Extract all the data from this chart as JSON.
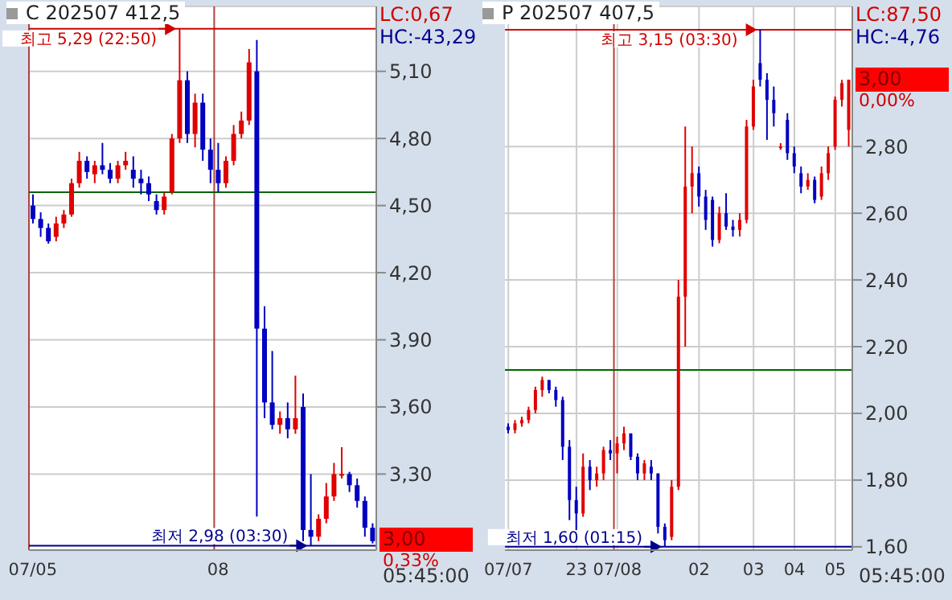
{
  "chart_data": [
    {
      "type": "candlestick",
      "title": "C 202507 412,5",
      "categories": [
        "07/05",
        null,
        null,
        null,
        null,
        null,
        null,
        null,
        null,
        null,
        null,
        null,
        null,
        null,
        null,
        null,
        null,
        null,
        null,
        null,
        null,
        null,
        null,
        null,
        "08",
        null,
        null,
        null,
        null,
        null,
        null,
        null,
        null,
        null,
        null,
        null,
        null,
        null,
        null,
        null,
        null,
        null,
        null,
        null,
        null
      ],
      "ohlc": [
        [
          4.5,
          4.55,
          4.42,
          4.44
        ],
        [
          4.44,
          4.47,
          4.36,
          4.4
        ],
        [
          4.4,
          4.42,
          4.33,
          4.34
        ],
        [
          4.36,
          4.45,
          4.34,
          4.42
        ],
        [
          4.42,
          4.48,
          4.4,
          4.46
        ],
        [
          4.46,
          4.62,
          4.45,
          4.6
        ],
        [
          4.6,
          4.74,
          4.58,
          4.7
        ],
        [
          4.7,
          4.72,
          4.62,
          4.65
        ],
        [
          4.64,
          4.7,
          4.6,
          4.68
        ],
        [
          4.68,
          4.78,
          4.64,
          4.66
        ],
        [
          4.66,
          4.69,
          4.6,
          4.62
        ],
        [
          4.62,
          4.7,
          4.6,
          4.68
        ],
        [
          4.68,
          4.74,
          4.66,
          4.7
        ],
        [
          4.66,
          4.72,
          4.58,
          4.62
        ],
        [
          4.62,
          4.66,
          4.55,
          4.6
        ],
        [
          4.6,
          4.63,
          4.52,
          4.55
        ],
        [
          4.52,
          4.55,
          4.46,
          4.48
        ],
        [
          4.48,
          4.56,
          4.46,
          4.54
        ],
        [
          4.56,
          4.82,
          4.55,
          4.8
        ],
        [
          4.8,
          5.29,
          4.78,
          5.06
        ],
        [
          5.06,
          5.1,
          4.78,
          4.82
        ],
        [
          4.82,
          5.0,
          4.76,
          4.96
        ],
        [
          4.96,
          5.0,
          4.7,
          4.75
        ],
        [
          4.75,
          4.8,
          4.6,
          4.66
        ],
        [
          4.66,
          4.78,
          4.56,
          4.6
        ],
        [
          4.6,
          4.72,
          4.58,
          4.7
        ],
        [
          4.7,
          4.86,
          4.68,
          4.82
        ],
        [
          4.82,
          4.92,
          4.8,
          4.88
        ],
        [
          4.88,
          5.2,
          4.86,
          5.14
        ],
        [
          5.1,
          5.24,
          3.11,
          3.95
        ],
        [
          3.95,
          4.05,
          3.55,
          3.62
        ],
        [
          3.62,
          3.85,
          3.5,
          3.52
        ],
        [
          3.52,
          3.58,
          3.48,
          3.55
        ],
        [
          3.55,
          3.62,
          3.46,
          3.5
        ],
        [
          3.5,
          3.74,
          3.48,
          3.55
        ],
        [
          3.6,
          3.66,
          3.0,
          3.05
        ],
        [
          3.05,
          3.3,
          2.98,
          3.02
        ],
        [
          3.02,
          3.12,
          3.0,
          3.1
        ],
        [
          3.1,
          3.26,
          3.08,
          3.2
        ],
        [
          3.2,
          3.35,
          3.18,
          3.3
        ],
        [
          3.3,
          3.42,
          3.28,
          3.3
        ],
        [
          3.3,
          3.31,
          3.22,
          3.25
        ],
        [
          3.25,
          3.28,
          3.15,
          3.18
        ],
        [
          3.18,
          3.2,
          3.02,
          3.06
        ],
        [
          3.06,
          3.08,
          2.99,
          3.0
        ]
      ],
      "colors": [
        "#0000c0",
        "#0000c0",
        "#0000c0",
        "#e00000",
        "#e00000",
        "#e00000",
        "#e00000",
        "#0000c0",
        "#e00000",
        "#0000c0",
        "#0000c0",
        "#e00000",
        "#e00000",
        "#0000c0",
        "#0000c0",
        "#0000c0",
        "#0000c0",
        "#e00000",
        "#e00000",
        "#e00000",
        "#0000c0",
        "#e00000",
        "#0000c0",
        "#0000c0",
        "#0000c0",
        "#e00000",
        "#e00000",
        "#e00000",
        "#e00000",
        "#0000c0",
        "#0000c0",
        "#0000c0",
        "#e00000",
        "#0000c0",
        "#e00000",
        "#0000c0",
        "#0000c0",
        "#e00000",
        "#e00000",
        "#e00000",
        "#e00000",
        "#0000c0",
        "#0000c0",
        "#0000c0",
        "#0000c0"
      ],
      "ylim": [
        2.96,
        5.39
      ],
      "yticks": [
        {
          "value": 3.3,
          "label": "3,30"
        },
        {
          "value": 3.6,
          "label": "3,60"
        },
        {
          "value": 3.9,
          "label": "3,90"
        },
        {
          "value": 4.2,
          "label": "4,20"
        },
        {
          "value": 4.5,
          "label": "4,50"
        },
        {
          "value": 4.8,
          "label": "4,80"
        },
        {
          "value": 5.1,
          "label": "5,10"
        }
      ],
      "grid": "y",
      "ref_lines": [
        {
          "axis": "y",
          "value": 5.29,
          "label": "최고 5,29 (22:50)",
          "color": "#d00000"
        },
        {
          "axis": "y",
          "value": 2.98,
          "label": "최저 2,98 (03:30)",
          "color": "#000090"
        },
        {
          "axis": "y",
          "value": 4.56,
          "color": "#006400"
        },
        {
          "axis": "x",
          "value": "07/05",
          "color": "#b04040"
        },
        {
          "axis": "x",
          "value": "08",
          "color": "#b04040"
        }
      ],
      "annotations": [
        "LC:0,67",
        "HC:-43,29",
        "3,00",
        "0,33%",
        "05:45:00"
      ]
    },
    {
      "type": "candlestick",
      "title": "P 202507 407,5",
      "categories": [
        "07/07",
        null,
        null,
        null,
        null,
        null,
        null,
        null,
        null,
        null,
        "23",
        null,
        null,
        null,
        null,
        null,
        "07/08",
        null,
        null,
        null,
        null,
        null,
        null,
        null,
        null,
        null,
        null,
        null,
        "02",
        null,
        null,
        null,
        null,
        null,
        null,
        null,
        "03",
        null,
        null,
        null,
        null,
        null,
        "04",
        null,
        null,
        null,
        null,
        null,
        "05",
        null,
        null
      ],
      "ohlc": [
        [
          1.96,
          1.97,
          1.94,
          1.95
        ],
        [
          1.95,
          1.98,
          1.94,
          1.97
        ],
        [
          1.97,
          1.99,
          1.96,
          1.98
        ],
        [
          1.98,
          2.02,
          1.97,
          2.01
        ],
        [
          2.01,
          2.08,
          2.0,
          2.07
        ],
        [
          2.07,
          2.11,
          2.05,
          2.1
        ],
        [
          2.1,
          2.1,
          2.06,
          2.07
        ],
        [
          2.07,
          2.08,
          2.02,
          2.04
        ],
        [
          2.04,
          2.05,
          1.86,
          1.9
        ],
        [
          1.9,
          1.92,
          1.68,
          1.74
        ],
        [
          1.74,
          1.78,
          1.65,
          1.7
        ],
        [
          1.7,
          1.88,
          1.69,
          1.84
        ],
        [
          1.84,
          1.86,
          1.77,
          1.8
        ],
        [
          1.8,
          1.84,
          1.78,
          1.82
        ],
        [
          1.82,
          1.9,
          1.8,
          1.89
        ],
        [
          1.89,
          1.92,
          1.86,
          1.88
        ],
        [
          1.88,
          1.93,
          1.82,
          1.91
        ],
        [
          1.91,
          1.96,
          1.89,
          1.94
        ],
        [
          1.94,
          1.94,
          1.86,
          1.87
        ],
        [
          1.87,
          1.88,
          1.8,
          1.82
        ],
        [
          1.82,
          1.86,
          1.8,
          1.85
        ],
        [
          1.84,
          1.86,
          1.8,
          1.82
        ],
        [
          1.82,
          1.82,
          1.64,
          1.66
        ],
        [
          1.66,
          1.67,
          1.6,
          1.62
        ],
        [
          1.63,
          1.8,
          1.62,
          1.78
        ],
        [
          1.78,
          2.4,
          1.77,
          2.35
        ],
        [
          2.35,
          2.86,
          2.2,
          2.68
        ],
        [
          2.68,
          2.8,
          2.6,
          2.72
        ],
        [
          2.72,
          2.74,
          2.62,
          2.65
        ],
        [
          2.65,
          2.67,
          2.55,
          2.58
        ],
        [
          2.64,
          2.65,
          2.5,
          2.52
        ],
        [
          2.52,
          2.62,
          2.51,
          2.6
        ],
        [
          2.6,
          2.66,
          2.55,
          2.56
        ],
        [
          2.56,
          2.58,
          2.53,
          2.55
        ],
        [
          2.55,
          2.6,
          2.53,
          2.58
        ],
        [
          2.58,
          2.88,
          2.57,
          2.86
        ],
        [
          2.86,
          3.0,
          2.85,
          2.98
        ],
        [
          3.05,
          3.15,
          2.98,
          3.0
        ],
        [
          3.0,
          3.02,
          2.82,
          2.94
        ],
        [
          2.94,
          2.98,
          2.86,
          2.9
        ],
        [
          2.8,
          2.81,
          2.79,
          2.8
        ],
        [
          2.88,
          2.9,
          2.76,
          2.78
        ],
        [
          2.78,
          2.8,
          2.72,
          2.74
        ],
        [
          2.72,
          2.74,
          2.66,
          2.68
        ],
        [
          2.68,
          2.72,
          2.67,
          2.7
        ],
        [
          2.7,
          2.71,
          2.63,
          2.64
        ],
        [
          2.65,
          2.74,
          2.64,
          2.72
        ],
        [
          2.72,
          2.8,
          2.7,
          2.78
        ],
        [
          2.8,
          2.95,
          2.79,
          2.94
        ],
        [
          2.94,
          3.0,
          2.92,
          2.99
        ],
        [
          2.85,
          3.0,
          2.8,
          3.0
        ]
      ],
      "colors": [
        "#0000c0",
        "#e00000",
        "#e00000",
        "#e00000",
        "#e00000",
        "#e00000",
        "#0000c0",
        "#0000c0",
        "#0000c0",
        "#0000c0",
        "#0000c0",
        "#e00000",
        "#0000c0",
        "#e00000",
        "#e00000",
        "#0000c0",
        "#e00000",
        "#e00000",
        "#0000c0",
        "#0000c0",
        "#e00000",
        "#0000c0",
        "#0000c0",
        "#0000c0",
        "#e00000",
        "#e00000",
        "#e00000",
        "#e00000",
        "#0000c0",
        "#0000c0",
        "#0000c0",
        "#e00000",
        "#0000c0",
        "#0000c0",
        "#e00000",
        "#e00000",
        "#e00000",
        "#0000c0",
        "#0000c0",
        "#0000c0",
        "#e00000",
        "#0000c0",
        "#0000c0",
        "#0000c0",
        "#e00000",
        "#0000c0",
        "#e00000",
        "#e00000",
        "#e00000",
        "#e00000",
        "#e00000"
      ],
      "ylim": [
        1.59,
        3.22
      ],
      "yticks": [
        {
          "value": 1.6,
          "label": "1,60"
        },
        {
          "value": 1.8,
          "label": "1,80"
        },
        {
          "value": 2.0,
          "label": "2,00"
        },
        {
          "value": 2.2,
          "label": "2,20"
        },
        {
          "value": 2.4,
          "label": "2,40"
        },
        {
          "value": 2.6,
          "label": "2,60"
        },
        {
          "value": 2.8,
          "label": "2,80"
        }
      ],
      "grid": true,
      "ref_lines": [
        {
          "axis": "y",
          "value": 3.15,
          "label": "최고 3,15 (03:30)",
          "color": "#d00000"
        },
        {
          "axis": "y",
          "value": 1.6,
          "label": "최저 1,60 (01:15)",
          "color": "#000090"
        },
        {
          "axis": "y",
          "value": 2.13,
          "color": "#006400"
        },
        {
          "axis": "x",
          "value": "07/08",
          "color": "#b04040"
        }
      ],
      "annotations": [
        "LC:87,50",
        "HC:-4,76",
        "3,00",
        "0,00%",
        "05:45:00"
      ]
    }
  ]
}
